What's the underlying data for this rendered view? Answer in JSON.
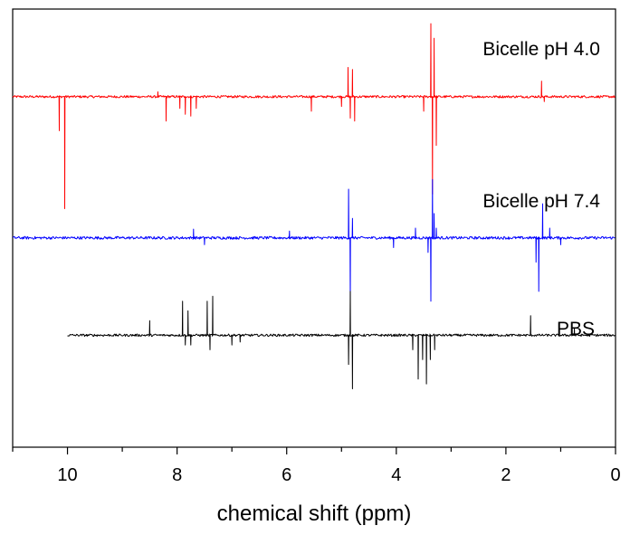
{
  "chart_data": {
    "type": "line",
    "xlabel": "chemical shift (ppm)",
    "ylabel": "",
    "xlim": [
      11,
      0
    ],
    "x_reversed": true,
    "ylim": [
      -3.6,
      0.9
    ],
    "y_axis_ticks_visible": false,
    "grid": false,
    "legend": "none",
    "x_ticks": [
      10,
      8,
      6,
      4,
      2,
      0
    ],
    "x_tick_labels": [
      "10",
      "8",
      "6",
      "4",
      "2",
      "0"
    ],
    "series": [
      {
        "name": "Bicelle pH 4.0",
        "color": "#ff0000",
        "baseline": 0,
        "noise": 0.012,
        "x_range": [
          11,
          0
        ],
        "peaks": [
          {
            "x": 10.15,
            "y": -0.35
          },
          {
            "x": 10.05,
            "y": -1.15
          },
          {
            "x": 8.35,
            "y": 0.05
          },
          {
            "x": 8.2,
            "y": -0.25
          },
          {
            "x": 7.95,
            "y": -0.12
          },
          {
            "x": 7.85,
            "y": -0.18
          },
          {
            "x": 7.75,
            "y": -0.2
          },
          {
            "x": 7.65,
            "y": -0.12
          },
          {
            "x": 5.55,
            "y": -0.15
          },
          {
            "x": 5.0,
            "y": -0.1
          },
          {
            "x": 4.88,
            "y": 0.3
          },
          {
            "x": 4.84,
            "y": -0.22
          },
          {
            "x": 4.8,
            "y": 0.28
          },
          {
            "x": 4.76,
            "y": -0.25
          },
          {
            "x": 3.5,
            "y": -0.15
          },
          {
            "x": 3.37,
            "y": 0.75
          },
          {
            "x": 3.34,
            "y": -1.0
          },
          {
            "x": 3.31,
            "y": 0.6
          },
          {
            "x": 3.27,
            "y": -0.5
          },
          {
            "x": 1.35,
            "y": 0.16
          },
          {
            "x": 1.3,
            "y": -0.05
          }
        ]
      },
      {
        "name": "Bicelle pH 7.4",
        "color": "#0000ff",
        "baseline": -1.45,
        "noise": 0.014,
        "x_range": [
          11,
          0
        ],
        "peaks": [
          {
            "x": 7.7,
            "y": -1.36
          },
          {
            "x": 7.5,
            "y": -1.52
          },
          {
            "x": 5.95,
            "y": -1.38
          },
          {
            "x": 4.87,
            "y": -0.95
          },
          {
            "x": 4.84,
            "y": -2.1
          },
          {
            "x": 4.8,
            "y": -1.25
          },
          {
            "x": 4.05,
            "y": -1.55
          },
          {
            "x": 3.65,
            "y": -1.35
          },
          {
            "x": 3.42,
            "y": -1.6
          },
          {
            "x": 3.37,
            "y": -2.1
          },
          {
            "x": 3.34,
            "y": -0.85
          },
          {
            "x": 3.31,
            "y": -1.2
          },
          {
            "x": 3.27,
            "y": -1.35
          },
          {
            "x": 1.45,
            "y": -1.7
          },
          {
            "x": 1.4,
            "y": -2.0
          },
          {
            "x": 1.33,
            "y": -1.1
          },
          {
            "x": 1.2,
            "y": -1.35
          },
          {
            "x": 1.0,
            "y": -1.52
          }
        ]
      },
      {
        "name": "PBS",
        "color": "#000000",
        "baseline": -2.45,
        "noise": 0.012,
        "x_range": [
          10,
          0
        ],
        "peaks": [
          {
            "x": 8.5,
            "y": -2.3
          },
          {
            "x": 7.9,
            "y": -2.1
          },
          {
            "x": 7.85,
            "y": -2.55
          },
          {
            "x": 7.8,
            "y": -2.2
          },
          {
            "x": 7.75,
            "y": -2.55
          },
          {
            "x": 7.45,
            "y": -2.1
          },
          {
            "x": 7.4,
            "y": -2.6
          },
          {
            "x": 7.35,
            "y": -2.05
          },
          {
            "x": 7.0,
            "y": -2.55
          },
          {
            "x": 6.85,
            "y": -2.52
          },
          {
            "x": 4.87,
            "y": -2.75
          },
          {
            "x": 4.84,
            "y": -2.0
          },
          {
            "x": 4.8,
            "y": -3.0
          },
          {
            "x": 3.7,
            "y": -2.6
          },
          {
            "x": 3.6,
            "y": -2.9
          },
          {
            "x": 3.52,
            "y": -2.7
          },
          {
            "x": 3.45,
            "y": -2.95
          },
          {
            "x": 3.38,
            "y": -2.7
          },
          {
            "x": 3.3,
            "y": -2.6
          },
          {
            "x": 1.55,
            "y": -2.25
          },
          {
            "x": 0.75,
            "y": -2.38
          }
        ]
      }
    ],
    "annotations": [
      {
        "text": "Bicelle pH 4.0",
        "series": 0
      },
      {
        "text": "Bicelle pH 7.4",
        "series": 1
      },
      {
        "text": "PBS",
        "series": 2
      }
    ]
  }
}
